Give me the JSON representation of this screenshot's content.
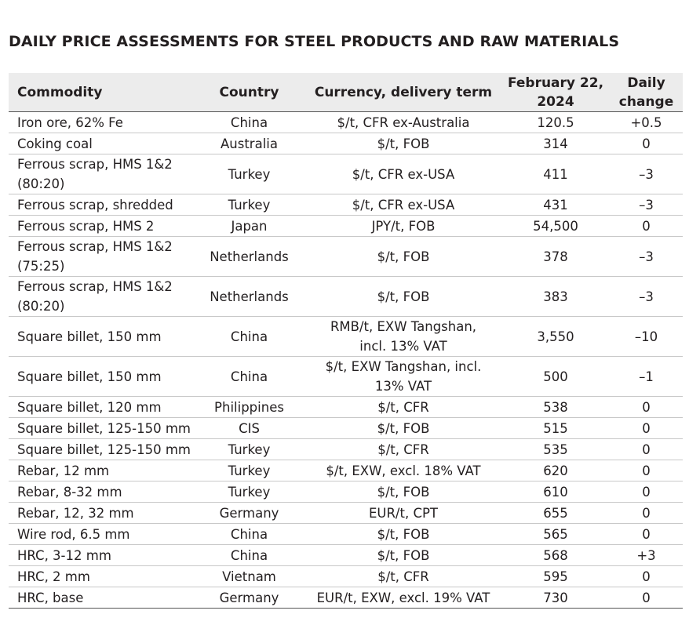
{
  "title": "DAILY PRICE ASSESSMENTS FOR STEEL PRODUCTS AND RAW MATERIALS",
  "headers": {
    "commodity": "Commodity",
    "country": "Country",
    "currency": "Currency, delivery term",
    "date_line1": "February 22,",
    "date_line2": "2024",
    "change_line1": "Daily",
    "change_line2": "change"
  },
  "rows": [
    {
      "commodity": [
        "Iron ore, 62% Fe"
      ],
      "country": "China",
      "currency": [
        "$/t, CFR ex-Australia"
      ],
      "price": "120.5",
      "change": "+0.5"
    },
    {
      "commodity": [
        "Coking coal"
      ],
      "country": "Australia",
      "currency": [
        "$/t, FOB"
      ],
      "price": "314",
      "change": "0"
    },
    {
      "commodity": [
        "Ferrous scrap, HMS 1&2",
        "(80:20)"
      ],
      "country": "Turkey",
      "currency": [
        "$/t, CFR ex-USA"
      ],
      "price": "411",
      "change": "–3"
    },
    {
      "commodity": [
        "Ferrous scrap, shredded"
      ],
      "country": "Turkey",
      "currency": [
        "$/t, CFR ex-USA"
      ],
      "price": "431",
      "change": "–3"
    },
    {
      "commodity": [
        "Ferrous scrap, HMS 2"
      ],
      "country": "Japan",
      "currency": [
        "JPY/t, FOB"
      ],
      "price": "54,500",
      "change": "0"
    },
    {
      "commodity": [
        "Ferrous scrap, HMS 1&2",
        "(75:25)"
      ],
      "country": "Netherlands",
      "currency": [
        "$/t, FOB"
      ],
      "price": "378",
      "change": "–3"
    },
    {
      "commodity": [
        "Ferrous scrap, HMS 1&2",
        "(80:20)"
      ],
      "country": "Netherlands",
      "currency": [
        "$/t, FOB"
      ],
      "price": "383",
      "change": "–3"
    },
    {
      "commodity": [
        "Square billet, 150 mm"
      ],
      "country": "China",
      "currency": [
        "RMB/t, EXW Tangshan,",
        "incl. 13% VAT"
      ],
      "price": "3,550",
      "change": "–10"
    },
    {
      "commodity": [
        "Square billet, 150 mm"
      ],
      "country": "China",
      "currency": [
        "$/t, EXW Tangshan, incl.",
        "13% VAT"
      ],
      "price": "500",
      "change": "–1"
    },
    {
      "commodity": [
        "Square billet, 120 mm"
      ],
      "country": "Philippines",
      "currency": [
        "$/t, CFR"
      ],
      "price": "538",
      "change": "0"
    },
    {
      "commodity": [
        "Square billet, 125-150 mm"
      ],
      "country": "CIS",
      "currency": [
        "$/t, FOB"
      ],
      "price": "515",
      "change": "0"
    },
    {
      "commodity": [
        "Square billet, 125-150 mm"
      ],
      "country": "Turkey",
      "currency": [
        "$/t, CFR"
      ],
      "price": "535",
      "change": "0"
    },
    {
      "commodity": [
        "Rebar, 12 mm"
      ],
      "country": "Turkey",
      "currency": [
        "$/t, EXW, excl. 18% VAT"
      ],
      "price": "620",
      "change": "0"
    },
    {
      "commodity": [
        "Rebar, 8-32 mm"
      ],
      "country": "Turkey",
      "currency": [
        "$/t, FOB"
      ],
      "price": "610",
      "change": "0"
    },
    {
      "commodity": [
        "Rebar, 12, 32 mm"
      ],
      "country": "Germany",
      "currency": [
        "EUR/t, CPT"
      ],
      "price": "655",
      "change": "0"
    },
    {
      "commodity": [
        "Wire rod, 6.5 mm"
      ],
      "country": "China",
      "currency": [
        "$/t, FOB"
      ],
      "price": "565",
      "change": "0"
    },
    {
      "commodity": [
        "HRC, 3-12 mm"
      ],
      "country": "China",
      "currency": [
        "$/t, FOB"
      ],
      "price": "568",
      "change": "+3"
    },
    {
      "commodity": [
        "HRC, 2 mm"
      ],
      "country": "Vietnam",
      "currency": [
        "$/t, CFR"
      ],
      "price": "595",
      "change": "0"
    },
    {
      "commodity": [
        "HRC, base"
      ],
      "country": "Germany",
      "currency": [
        "EUR/t, EXW, excl. 19% VAT"
      ],
      "price": "730",
      "change": "0"
    }
  ]
}
